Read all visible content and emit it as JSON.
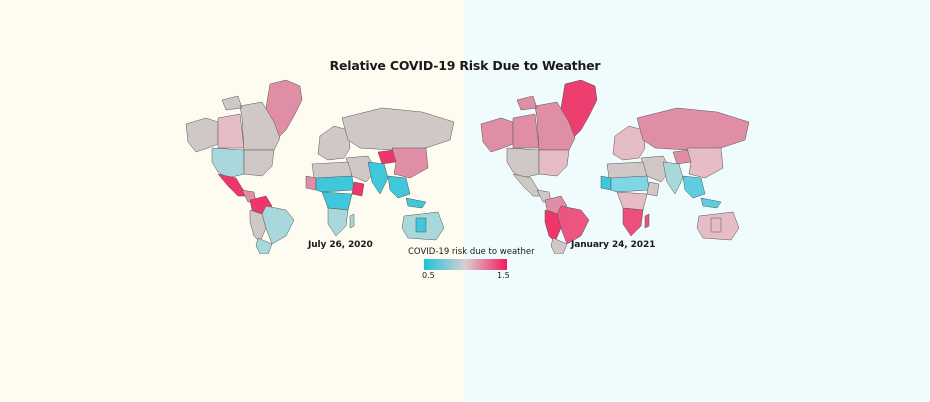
{
  "title": "Relative COVID-19 Risk Due to Weather",
  "backgrounds": {
    "left": "#fefbf0",
    "right": "#effbfc"
  },
  "maps": [
    {
      "date": "July 26, 2020",
      "colors": {
        "greenland": "#e08ea6",
        "canada_north": "#cfc8c6",
        "canada_west": "#e6bcc6",
        "alaska": "#cfc8c6",
        "usa": "#a8d8dc",
        "usa_east": "#cfc8c6",
        "mexico": "#f0356a",
        "central_america": "#e08ea6",
        "colombia": "#f0356a",
        "brazil": "#a8d8dc",
        "south_america_west": "#cfc8c6",
        "argentina": "#a8d8dc",
        "europe": "#cfc8c6",
        "russia": "#cfc8c6",
        "north_africa": "#cfc8c6",
        "sahel": "#3fc7dc",
        "west_africa": "#e08ea6",
        "ethiopia": "#f0356a",
        "central_africa": "#3fc7dc",
        "southern_africa": "#a8d8dc",
        "middle_east": "#cfc8c6",
        "india": "#3fc7dc",
        "tibet": "#f0356a",
        "china": "#e08ea6",
        "southeast_asia": "#3fc7dc",
        "australia": "#a8d8dc",
        "australia_center": "#3fc7dc"
      }
    },
    {
      "date": "January 24, 2021",
      "colors": {
        "greenland": "#ec3f70",
        "canada_north": "#e08ea6",
        "canada_west": "#e08ea6",
        "alaska": "#e08ea6",
        "usa": "#cfc8c6",
        "usa_east": "#e6bcc6",
        "mexico": "#cfc8c6",
        "central_america": "#cfc8c6",
        "colombia": "#e08ea6",
        "brazil": "#ec5580",
        "south_america_west": "#f0356a",
        "argentina": "#cfc8c6",
        "europe": "#e6bcc6",
        "russia": "#e08ea6",
        "north_africa": "#cfc8c6",
        "sahel": "#7fd6e4",
        "west_africa": "#3fc7dc",
        "ethiopia": "#cfc8c6",
        "central_africa": "#e6bcc6",
        "southern_africa": "#ec4f7a",
        "middle_east": "#cfc8c6",
        "india": "#a8d8dc",
        "tibet": "#e08ea6",
        "china": "#e6bcc6",
        "southeast_asia": "#5fcce0",
        "australia": "#e6bcc6",
        "australia_center": "#e6bcc6"
      }
    }
  ],
  "legend": {
    "title": "COVID-19 risk due to weather",
    "min_label": "0.5",
    "max_label": "1.5",
    "gradient": [
      "#1ec2d8",
      "#d8d0d0",
      "#f7195e"
    ]
  }
}
